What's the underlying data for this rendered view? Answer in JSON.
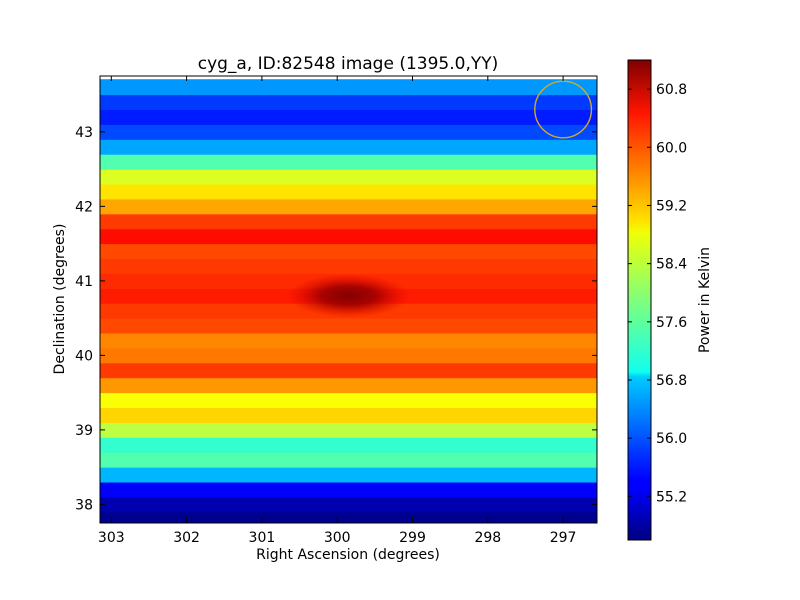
{
  "chart_data": {
    "type": "heatmap",
    "title": "cyg_a, ID:82548 image (1395.0,YY)",
    "xlabel": "Right Ascension (degrees)",
    "ylabel": "Declination (degrees)",
    "xlim": [
      303.15,
      296.55
    ],
    "ylim": [
      37.75,
      43.75
    ],
    "x_ticks": [
      303,
      302,
      301,
      300,
      299,
      298,
      297
    ],
    "y_ticks": [
      38,
      39,
      40,
      41,
      42,
      43
    ],
    "colorbar": {
      "label": "Power in Kelvin",
      "colormap": "jet",
      "range": [
        54.6,
        61.2
      ],
      "ticks": [
        "60.8",
        "60.0",
        "59.2",
        "58.4",
        "57.6",
        "56.8",
        "56.0",
        "55.2"
      ]
    },
    "dec_profile": [
      {
        "dec": 37.8,
        "power": 54.7
      },
      {
        "dec": 38.0,
        "power": 54.9
      },
      {
        "dec": 38.2,
        "power": 55.4
      },
      {
        "dec": 38.4,
        "power": 56.6
      },
      {
        "dec": 38.6,
        "power": 57.6
      },
      {
        "dec": 38.8,
        "power": 57.4
      },
      {
        "dec": 39.0,
        "power": 58.3
      },
      {
        "dec": 39.2,
        "power": 59.0
      },
      {
        "dec": 39.4,
        "power": 58.7
      },
      {
        "dec": 39.6,
        "power": 59.4
      },
      {
        "dec": 39.8,
        "power": 60.0
      },
      {
        "dec": 40.0,
        "power": 59.6
      },
      {
        "dec": 40.2,
        "power": 59.5
      },
      {
        "dec": 40.4,
        "power": 59.9
      },
      {
        "dec": 40.6,
        "power": 60.0
      },
      {
        "dec": 40.8,
        "power": 60.2
      },
      {
        "dec": 41.0,
        "power": 60.1
      },
      {
        "dec": 41.2,
        "power": 60.0
      },
      {
        "dec": 41.4,
        "power": 59.9
      },
      {
        "dec": 41.6,
        "power": 60.3
      },
      {
        "dec": 41.8,
        "power": 60.0
      },
      {
        "dec": 42.0,
        "power": 59.3
      },
      {
        "dec": 42.2,
        "power": 58.9
      },
      {
        "dec": 42.4,
        "power": 58.5
      },
      {
        "dec": 42.6,
        "power": 57.6
      },
      {
        "dec": 42.8,
        "power": 56.5
      },
      {
        "dec": 43.0,
        "power": 55.9
      },
      {
        "dec": 43.2,
        "power": 55.6
      },
      {
        "dec": 43.4,
        "power": 55.8
      },
      {
        "dec": 43.6,
        "power": 56.4
      }
    ],
    "source_peak": {
      "ra": 299.85,
      "dec": 40.8,
      "power": 61.1
    },
    "beam_marker": {
      "ra": 297.0,
      "dec": 43.3,
      "radius_deg": 0.38,
      "color": "#d4a829"
    },
    "grid": false
  }
}
